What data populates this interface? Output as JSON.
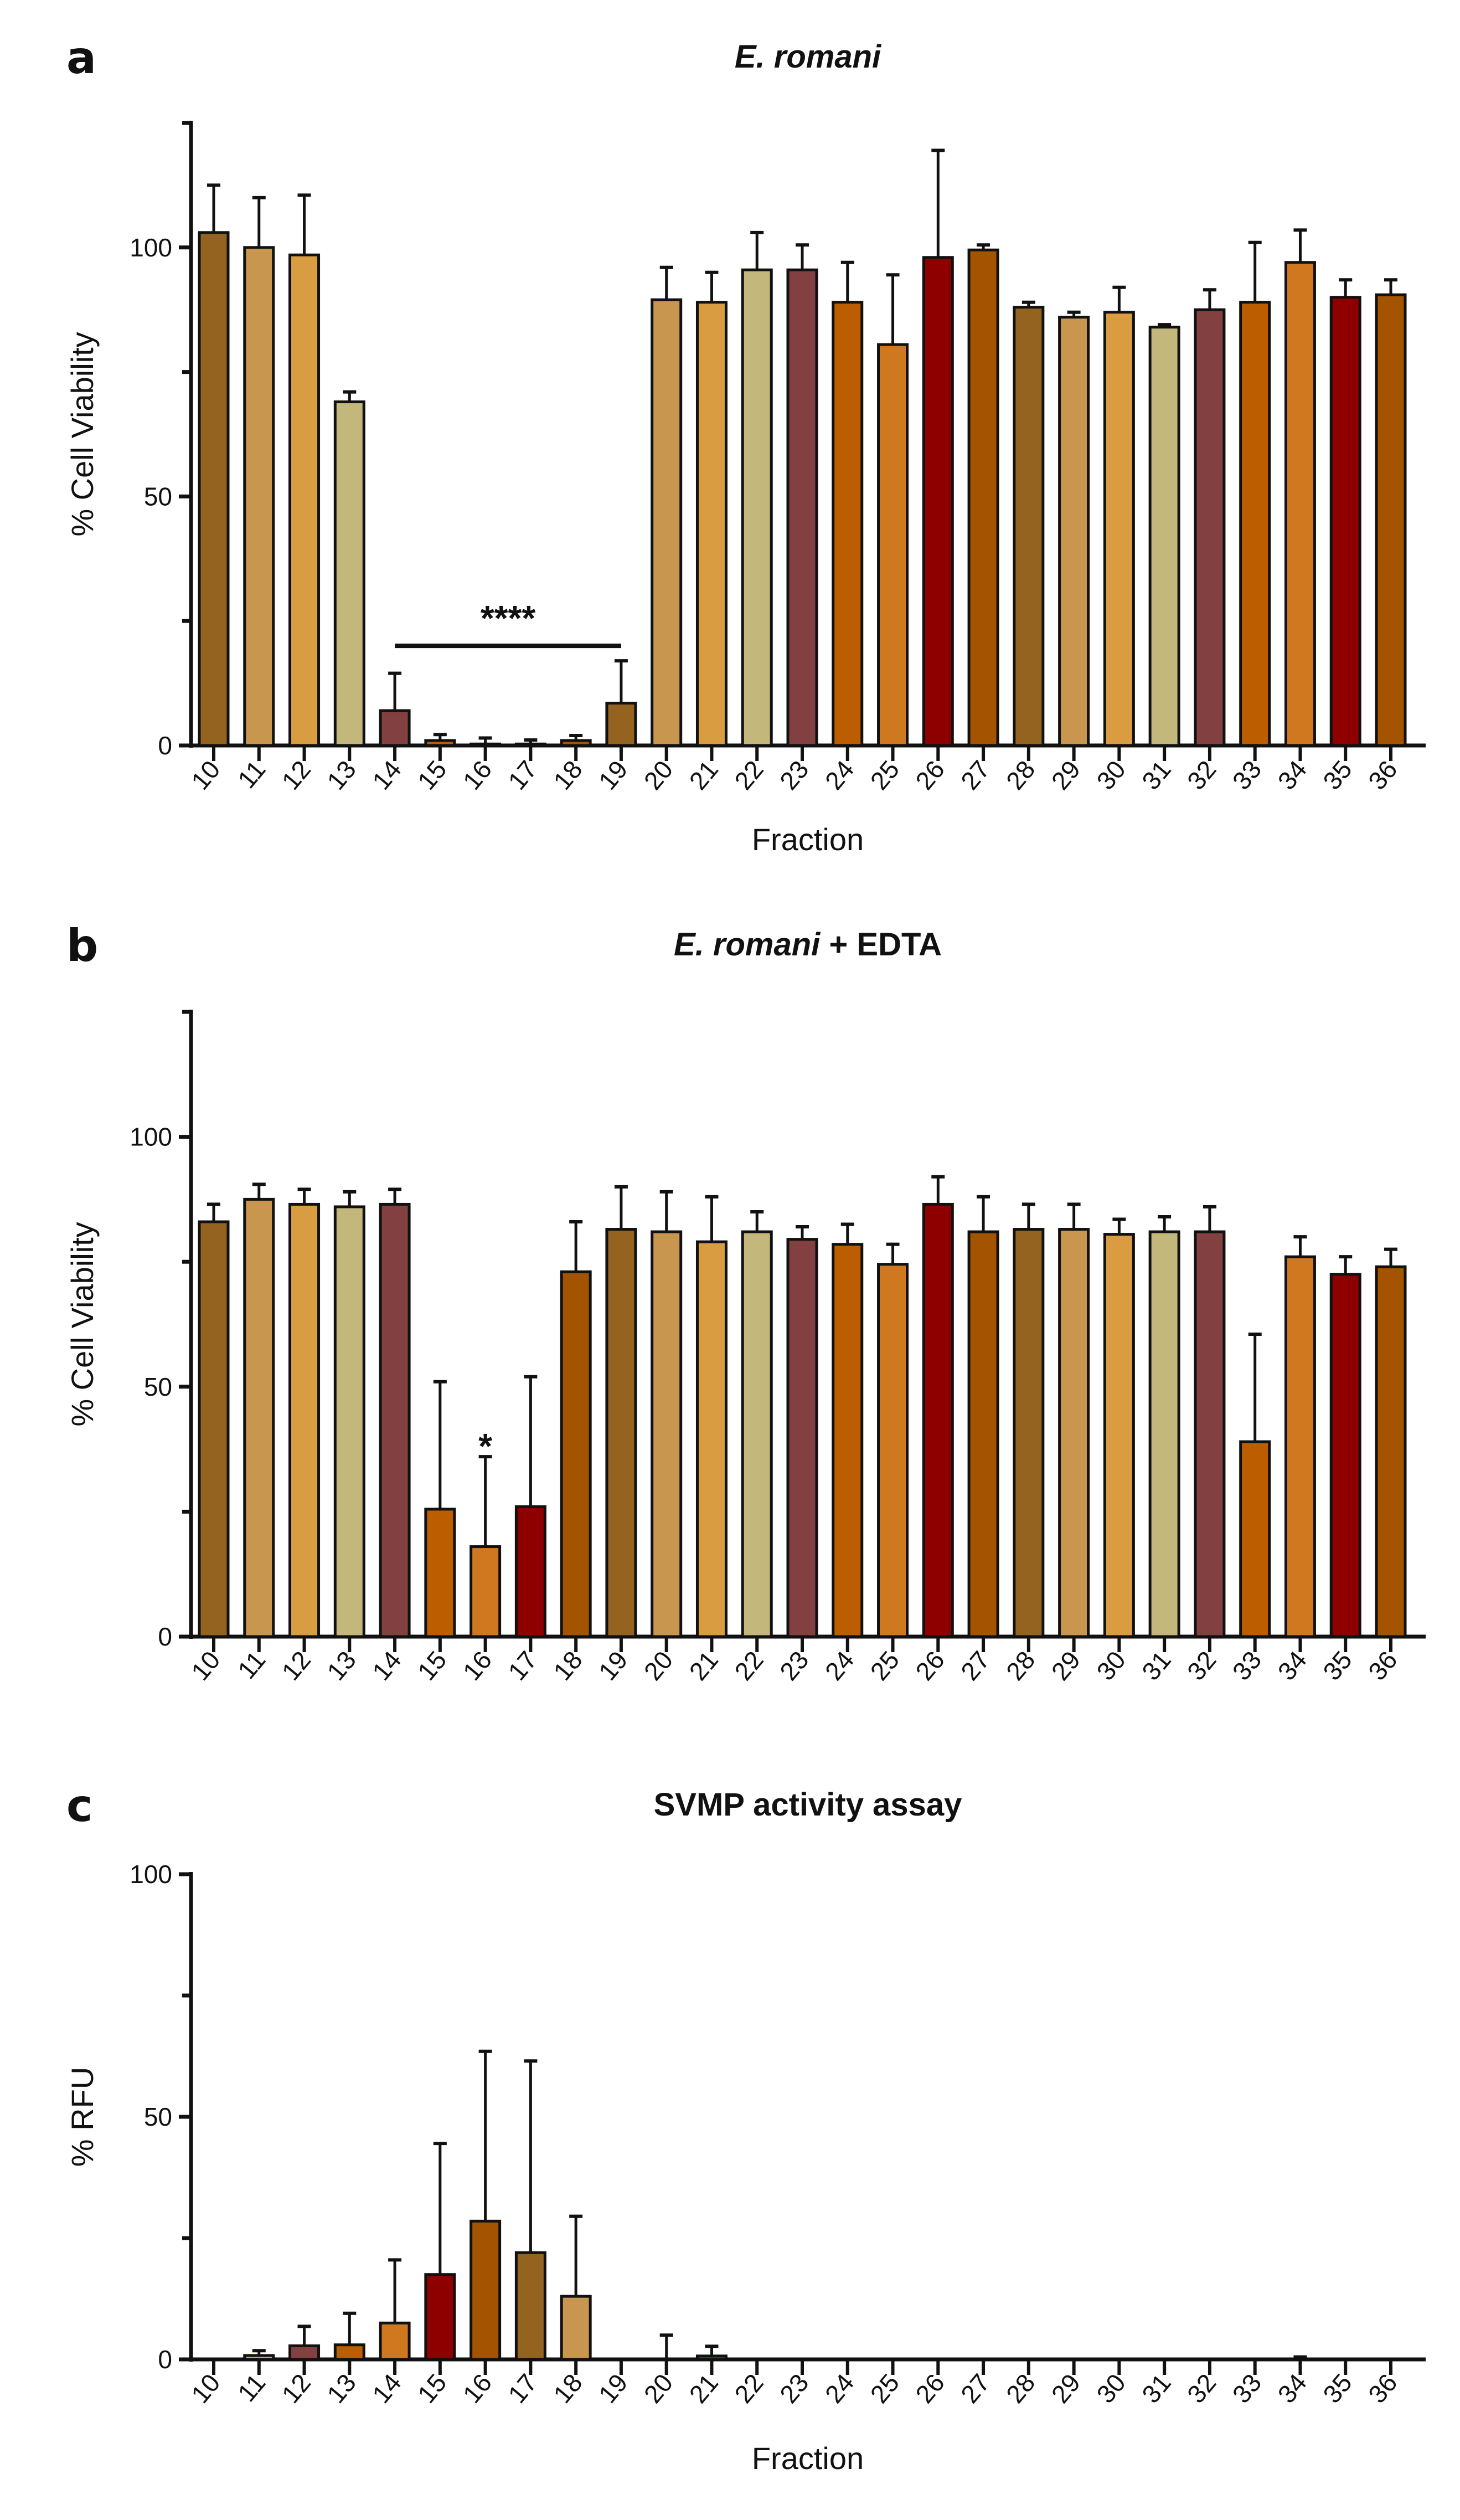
{
  "palette": [
    "#956320",
    "#C8964F",
    "#DA9C40",
    "#C3B77C",
    "#824040",
    "#BC5E00",
    "#D07820",
    "#8E0000",
    "#A45300"
  ],
  "chart_data": [
    {
      "type": "bar",
      "panel_label": "a",
      "title_parts": [
        {
          "text": "E. romani",
          "italic": true
        }
      ],
      "xlabel": "Fraction",
      "ylabel": "% Cell Viability",
      "ylim": [
        0,
        125
      ],
      "yticks": [
        0,
        50,
        100
      ],
      "yminor": [
        25,
        75,
        125
      ],
      "color_offset": 0,
      "categories": [
        "10",
        "11",
        "12",
        "13",
        "14",
        "15",
        "16",
        "17",
        "18",
        "19",
        "20",
        "21",
        "22",
        "23",
        "24",
        "25",
        "26",
        "27",
        "28",
        "29",
        "30",
        "31",
        "32",
        "33",
        "34",
        "35",
        "36"
      ],
      "values": [
        103,
        100,
        98.5,
        69,
        7,
        1,
        0.3,
        0.3,
        1,
        8.5,
        89.5,
        89,
        95.5,
        95.5,
        89,
        80.5,
        98,
        99.5,
        88,
        86,
        87,
        84,
        87.5,
        89,
        97,
        90,
        90.5
      ],
      "errors": [
        9.5,
        10,
        12,
        2,
        7.5,
        1.2,
        1.2,
        0.8,
        1,
        8.5,
        6.5,
        6,
        7.5,
        5,
        8,
        14,
        21.5,
        1,
        1,
        1,
        5,
        0.5,
        4,
        12,
        6.5,
        3.5,
        3
      ],
      "annotations": [
        {
          "type": "bracket",
          "from": "14",
          "to": "19",
          "y": 20,
          "text": "****"
        }
      ]
    },
    {
      "type": "bar",
      "panel_label": "b",
      "title_parts": [
        {
          "text": "E. romani",
          "italic": true
        },
        {
          "text": " + EDTA",
          "italic": false
        }
      ],
      "xlabel": "",
      "ylabel": "% Cell Viability",
      "ylim": [
        0,
        125
      ],
      "yticks": [
        0,
        50,
        100
      ],
      "yminor": [
        25,
        75,
        125
      ],
      "color_offset": 0,
      "categories": [
        "10",
        "11",
        "12",
        "13",
        "14",
        "15",
        "16",
        "17",
        "18",
        "19",
        "20",
        "21",
        "22",
        "23",
        "24",
        "25",
        "26",
        "27",
        "28",
        "29",
        "30",
        "31",
        "32",
        "33",
        "34",
        "35",
        "36"
      ],
      "values": [
        83,
        87.5,
        86.5,
        86,
        86.5,
        25.5,
        18,
        26,
        73,
        81.5,
        81,
        79,
        81,
        79.5,
        78.5,
        74.5,
        86.5,
        81,
        81.5,
        81.5,
        80.5,
        81,
        81,
        39,
        76,
        72.5,
        74
      ],
      "errors": [
        3.5,
        3,
        3,
        3,
        3,
        25.5,
        18,
        26,
        10,
        8.5,
        8,
        9,
        4,
        2.5,
        4,
        4,
        5.5,
        7,
        5,
        5,
        3,
        3,
        5,
        21.5,
        4,
        3.5,
        3.5
      ],
      "annotations": [
        {
          "type": "star",
          "at": "16",
          "y": 39,
          "text": "*"
        }
      ]
    },
    {
      "type": "bar",
      "panel_label": "c",
      "title_parts": [
        {
          "text": "SVMP activity assay",
          "italic": false
        }
      ],
      "xlabel": "Fraction",
      "ylabel": "% RFU",
      "ylim": [
        0,
        100
      ],
      "yticks": [
        0,
        50,
        100
      ],
      "yminor": [
        25,
        75
      ],
      "color_offset": 2,
      "categories": [
        "10",
        "11",
        "12",
        "13",
        "14",
        "15",
        "16",
        "17",
        "18",
        "19",
        "20",
        "21",
        "22",
        "23",
        "24",
        "25",
        "26",
        "27",
        "28",
        "29",
        "30",
        "31",
        "32",
        "33",
        "34",
        "35",
        "36"
      ],
      "values": [
        0,
        0.8,
        2.8,
        3,
        7.5,
        17.5,
        28.5,
        22,
        13,
        0,
        0,
        0.7,
        0,
        0,
        0,
        0,
        0,
        0,
        0,
        0,
        0,
        0,
        0,
        0,
        0,
        0,
        0
      ],
      "errors": [
        0,
        1,
        4,
        6.5,
        13,
        27,
        35,
        39.5,
        16.5,
        0,
        5,
        2,
        0,
        0,
        0,
        0,
        0,
        0,
        0,
        0,
        0,
        0,
        0,
        0,
        0.5,
        0,
        0
      ],
      "annotations": []
    }
  ]
}
